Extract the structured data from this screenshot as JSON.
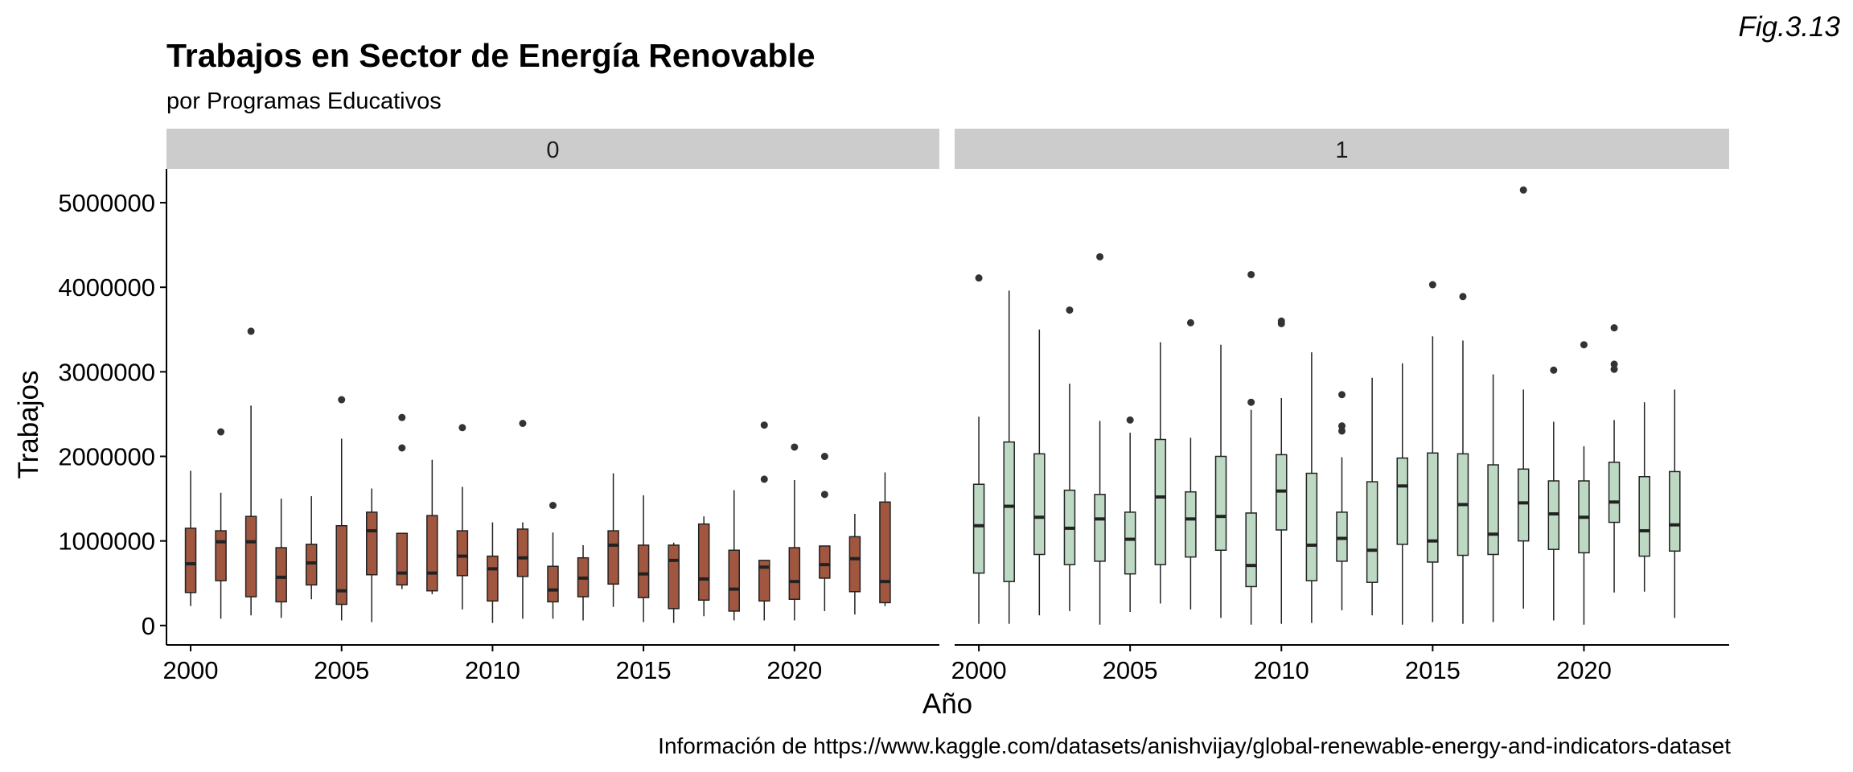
{
  "page": {
    "title": "Trabajos en Sector de Energía Renovable",
    "subtitle": "por Programas Educativos",
    "tag": "Fig.3.13",
    "caption": "Información de https://www.kaggle.com/datasets/anishvijay/global-renewable-energy-and-indicators-dataset"
  },
  "chart_data": {
    "type": "boxplot",
    "title": "Trabajos en Sector de Energía Renovable",
    "subtitle": "por Programas Educativos",
    "xlabel": "Año",
    "ylabel": "Trabajos",
    "xlim": [
      1999.2,
      2024.8
    ],
    "ylim": [
      -230000,
      5400000
    ],
    "x_ticks": [
      2000,
      2005,
      2010,
      2015,
      2020
    ],
    "y_ticks": [
      0,
      1000000,
      2000000,
      3000000,
      4000000,
      5000000
    ],
    "grid": false,
    "legend": "none",
    "panels": [
      {
        "label": "0",
        "fill": "#a0563f",
        "boxes": [
          {
            "x": 2000,
            "lo": 230000,
            "q1": 390000,
            "med": 730000,
            "q3": 1150000,
            "hi": 1830000,
            "out": []
          },
          {
            "x": 2001,
            "lo": 80000,
            "q1": 530000,
            "med": 990000,
            "q3": 1120000,
            "hi": 1570000,
            "out": [
              2290000
            ]
          },
          {
            "x": 2002,
            "lo": 120000,
            "q1": 340000,
            "med": 990000,
            "q3": 1290000,
            "hi": 2600000,
            "out": [
              3480000
            ]
          },
          {
            "x": 2003,
            "lo": 90000,
            "q1": 280000,
            "med": 570000,
            "q3": 920000,
            "hi": 1500000,
            "out": []
          },
          {
            "x": 2004,
            "lo": 310000,
            "q1": 480000,
            "med": 740000,
            "q3": 960000,
            "hi": 1530000,
            "out": []
          },
          {
            "x": 2005,
            "lo": 60000,
            "q1": 250000,
            "med": 410000,
            "q3": 1180000,
            "hi": 2210000,
            "out": [
              2670000
            ]
          },
          {
            "x": 2006,
            "lo": 40000,
            "q1": 600000,
            "med": 1120000,
            "q3": 1340000,
            "hi": 1620000,
            "out": []
          },
          {
            "x": 2007,
            "lo": 430000,
            "q1": 480000,
            "med": 620000,
            "q3": 1090000,
            "hi": 1090000,
            "out": [
              2100000,
              2460000
            ]
          },
          {
            "x": 2008,
            "lo": 370000,
            "q1": 410000,
            "med": 620000,
            "q3": 1300000,
            "hi": 1960000,
            "out": []
          },
          {
            "x": 2009,
            "lo": 190000,
            "q1": 590000,
            "med": 820000,
            "q3": 1120000,
            "hi": 1640000,
            "out": [
              2340000
            ]
          },
          {
            "x": 2010,
            "lo": 30000,
            "q1": 290000,
            "med": 670000,
            "q3": 820000,
            "hi": 1220000,
            "out": []
          },
          {
            "x": 2011,
            "lo": 80000,
            "q1": 580000,
            "med": 800000,
            "q3": 1140000,
            "hi": 1220000,
            "out": [
              2390000
            ]
          },
          {
            "x": 2012,
            "lo": 80000,
            "q1": 280000,
            "med": 420000,
            "q3": 700000,
            "hi": 1100000,
            "out": [
              1420000
            ]
          },
          {
            "x": 2013,
            "lo": 60000,
            "q1": 340000,
            "med": 560000,
            "q3": 800000,
            "hi": 950000,
            "out": []
          },
          {
            "x": 2014,
            "lo": 220000,
            "q1": 490000,
            "med": 950000,
            "q3": 1120000,
            "hi": 1800000,
            "out": []
          },
          {
            "x": 2015,
            "lo": 40000,
            "q1": 330000,
            "med": 610000,
            "q3": 950000,
            "hi": 1540000,
            "out": []
          },
          {
            "x": 2016,
            "lo": 30000,
            "q1": 200000,
            "med": 770000,
            "q3": 950000,
            "hi": 980000,
            "out": []
          },
          {
            "x": 2017,
            "lo": 110000,
            "q1": 300000,
            "med": 550000,
            "q3": 1200000,
            "hi": 1290000,
            "out": []
          },
          {
            "x": 2018,
            "lo": 60000,
            "q1": 170000,
            "med": 430000,
            "q3": 890000,
            "hi": 1600000,
            "out": []
          },
          {
            "x": 2019,
            "lo": 60000,
            "q1": 290000,
            "med": 690000,
            "q3": 770000,
            "hi": 770000,
            "out": [
              1730000,
              2370000
            ]
          },
          {
            "x": 2020,
            "lo": 60000,
            "q1": 310000,
            "med": 520000,
            "q3": 920000,
            "hi": 1720000,
            "out": [
              2110000
            ]
          },
          {
            "x": 2021,
            "lo": 170000,
            "q1": 560000,
            "med": 720000,
            "q3": 940000,
            "hi": 940000,
            "out": [
              1550000,
              2000000
            ]
          },
          {
            "x": 2022,
            "lo": 130000,
            "q1": 400000,
            "med": 790000,
            "q3": 1050000,
            "hi": 1320000,
            "out": []
          },
          {
            "x": 2023,
            "lo": 230000,
            "q1": 270000,
            "med": 520000,
            "q3": 1460000,
            "hi": 1810000,
            "out": []
          }
        ]
      },
      {
        "label": "1",
        "fill": "#bdd9c3",
        "boxes": [
          {
            "x": 2000,
            "lo": 20000,
            "q1": 620000,
            "med": 1180000,
            "q3": 1670000,
            "hi": 2470000,
            "out": [
              4110000
            ]
          },
          {
            "x": 2001,
            "lo": 20000,
            "q1": 520000,
            "med": 1410000,
            "q3": 2170000,
            "hi": 3960000,
            "out": []
          },
          {
            "x": 2002,
            "lo": 120000,
            "q1": 840000,
            "med": 1280000,
            "q3": 2030000,
            "hi": 3500000,
            "out": []
          },
          {
            "x": 2003,
            "lo": 170000,
            "q1": 720000,
            "med": 1150000,
            "q3": 1600000,
            "hi": 2860000,
            "out": [
              3730000
            ]
          },
          {
            "x": 2004,
            "lo": 10000,
            "q1": 760000,
            "med": 1260000,
            "q3": 1550000,
            "hi": 2420000,
            "out": [
              4360000
            ]
          },
          {
            "x": 2005,
            "lo": 160000,
            "q1": 610000,
            "med": 1020000,
            "q3": 1340000,
            "hi": 2280000,
            "out": [
              2430000
            ]
          },
          {
            "x": 2006,
            "lo": 260000,
            "q1": 720000,
            "med": 1520000,
            "q3": 2200000,
            "hi": 3350000,
            "out": []
          },
          {
            "x": 2007,
            "lo": 190000,
            "q1": 810000,
            "med": 1260000,
            "q3": 1580000,
            "hi": 2220000,
            "out": [
              3580000
            ]
          },
          {
            "x": 2008,
            "lo": 90000,
            "q1": 890000,
            "med": 1290000,
            "q3": 2000000,
            "hi": 3320000,
            "out": []
          },
          {
            "x": 2009,
            "lo": 10000,
            "q1": 460000,
            "med": 710000,
            "q3": 1330000,
            "hi": 2550000,
            "out": [
              2640000,
              4150000
            ]
          },
          {
            "x": 2010,
            "lo": 20000,
            "q1": 1130000,
            "med": 1590000,
            "q3": 2020000,
            "hi": 2690000,
            "out": [
              3570000,
              3600000
            ]
          },
          {
            "x": 2011,
            "lo": 30000,
            "q1": 530000,
            "med": 950000,
            "q3": 1800000,
            "hi": 3230000,
            "out": []
          },
          {
            "x": 2012,
            "lo": 180000,
            "q1": 760000,
            "med": 1030000,
            "q3": 1340000,
            "hi": 1990000,
            "out": [
              2300000,
              2360000,
              2730000
            ]
          },
          {
            "x": 2013,
            "lo": 120000,
            "q1": 510000,
            "med": 890000,
            "q3": 1700000,
            "hi": 2930000,
            "out": []
          },
          {
            "x": 2014,
            "lo": 10000,
            "q1": 960000,
            "med": 1650000,
            "q3": 1980000,
            "hi": 3100000,
            "out": []
          },
          {
            "x": 2015,
            "lo": 40000,
            "q1": 750000,
            "med": 1000000,
            "q3": 2040000,
            "hi": 3420000,
            "out": [
              4030000
            ]
          },
          {
            "x": 2016,
            "lo": 20000,
            "q1": 830000,
            "med": 1430000,
            "q3": 2030000,
            "hi": 3370000,
            "out": [
              3890000
            ]
          },
          {
            "x": 2017,
            "lo": 40000,
            "q1": 840000,
            "med": 1080000,
            "q3": 1900000,
            "hi": 2970000,
            "out": []
          },
          {
            "x": 2018,
            "lo": 200000,
            "q1": 1000000,
            "med": 1450000,
            "q3": 1850000,
            "hi": 2790000,
            "out": [
              5150000
            ]
          },
          {
            "x": 2019,
            "lo": 60000,
            "q1": 900000,
            "med": 1320000,
            "q3": 1710000,
            "hi": 2410000,
            "out": [
              3020000
            ]
          },
          {
            "x": 2020,
            "lo": 10000,
            "q1": 860000,
            "med": 1280000,
            "q3": 1710000,
            "hi": 2120000,
            "out": [
              3320000
            ]
          },
          {
            "x": 2021,
            "lo": 390000,
            "q1": 1220000,
            "med": 1460000,
            "q3": 1930000,
            "hi": 2430000,
            "out": [
              3030000,
              3090000,
              3520000
            ]
          },
          {
            "x": 2022,
            "lo": 400000,
            "q1": 820000,
            "med": 1120000,
            "q3": 1760000,
            "hi": 2640000,
            "out": []
          },
          {
            "x": 2023,
            "lo": 90000,
            "q1": 880000,
            "med": 1190000,
            "q3": 1820000,
            "hi": 2790000,
            "out": []
          }
        ]
      }
    ]
  }
}
